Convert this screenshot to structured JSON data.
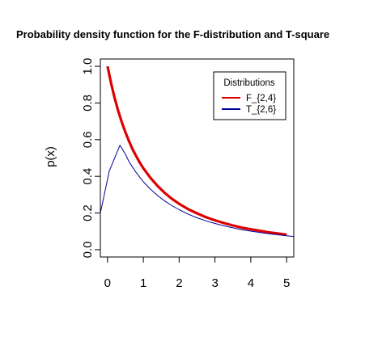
{
  "chart_data": {
    "type": "line",
    "title": "Probability density function for the F-distribution and T-square",
    "xlabel": "",
    "ylabel": "p(x)",
    "xlim": [
      -0.2,
      5.2
    ],
    "ylim": [
      -0.04,
      1.04
    ],
    "x_ticks": [
      "0",
      "1",
      "2",
      "3",
      "4",
      "5"
    ],
    "y_ticks": [
      "0.0",
      "0.2",
      "0.4",
      "0.6",
      "0.8",
      "1.0"
    ],
    "legend": {
      "title": "Distributions",
      "position": "top-right"
    },
    "series": [
      {
        "name": "F_{2,4}",
        "color": "#dd0000",
        "x": [
          0.0,
          0.1,
          0.2,
          0.3,
          0.4,
          0.5,
          0.6,
          0.7,
          0.8,
          0.9,
          1.0,
          1.2,
          1.4,
          1.6,
          1.8,
          2.0,
          2.25,
          2.5,
          2.75,
          3.0,
          3.25,
          3.5,
          3.75,
          4.0,
          4.5,
          5.0
        ],
        "y": [
          1.0,
          0.907,
          0.826,
          0.756,
          0.694,
          0.64,
          0.592,
          0.548,
          0.51,
          0.475,
          0.444,
          0.391,
          0.347,
          0.309,
          0.277,
          0.25,
          0.221,
          0.198,
          0.177,
          0.16,
          0.145,
          0.132,
          0.12,
          0.111,
          0.095,
          0.082
        ]
      },
      {
        "name": "T_{2,6}",
        "color": "#000099",
        "x": [
          -0.2,
          0.05,
          0.35,
          0.5,
          0.6,
          0.7,
          0.8,
          0.9,
          1.0,
          1.2,
          1.4,
          1.6,
          1.8,
          2.0,
          2.25,
          2.5,
          2.75,
          3.0,
          3.25,
          3.5,
          3.75,
          4.0,
          4.5,
          5.0,
          5.2
        ],
        "y": [
          0.2,
          0.43,
          0.57,
          0.52,
          0.48,
          0.45,
          0.42,
          0.395,
          0.37,
          0.33,
          0.295,
          0.265,
          0.24,
          0.218,
          0.194,
          0.174,
          0.157,
          0.143,
          0.13,
          0.119,
          0.109,
          0.101,
          0.087,
          0.076,
          0.072
        ]
      }
    ]
  }
}
